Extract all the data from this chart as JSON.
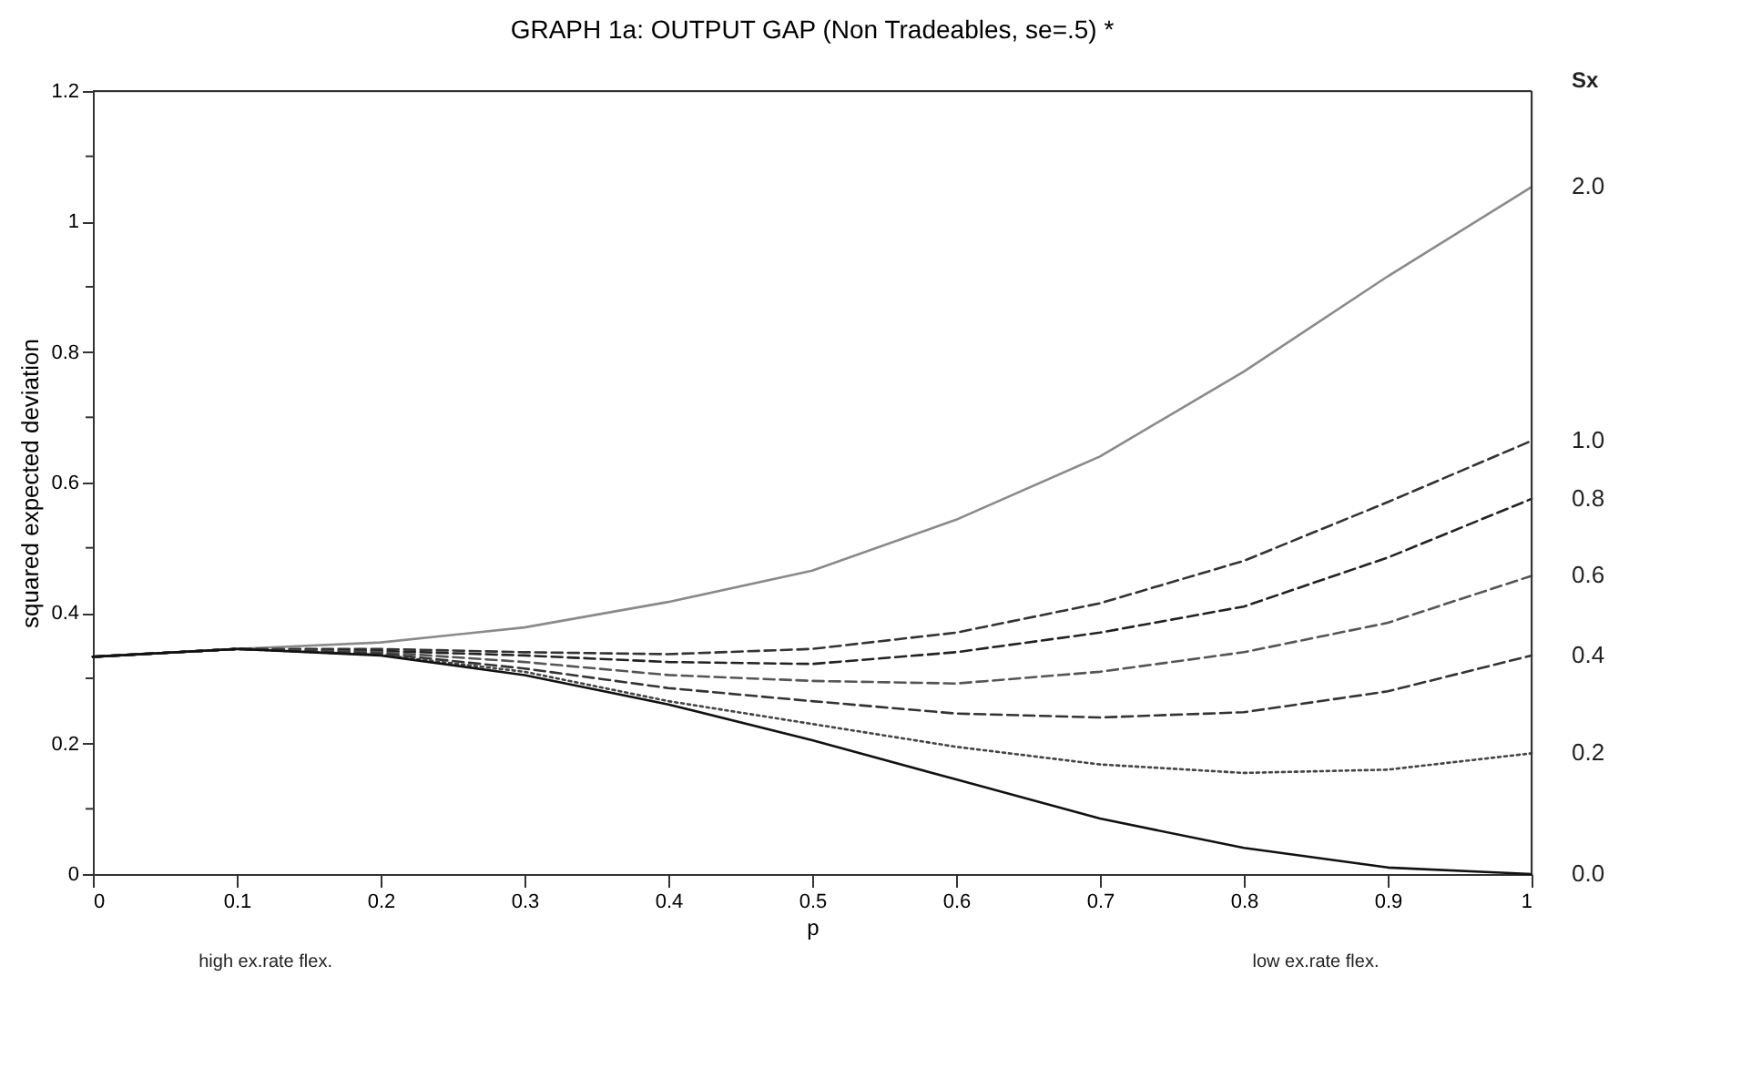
{
  "chart_data": {
    "type": "line",
    "title": "GRAPH 1a: OUTPUT GAP (Non Tradeables, se=.5) *",
    "xlabel": "p",
    "ylabel": "squared expected deviation",
    "legend_title": "Sx",
    "x": [
      0,
      0.1,
      0.2,
      0.3,
      0.4,
      0.5,
      0.6,
      0.7,
      0.8,
      0.9,
      1
    ],
    "series": [
      {
        "name": "2.0",
        "color": "#8a8a8a",
        "line_style": "solid",
        "values": [
          0.333,
          0.345,
          0.355,
          0.378,
          0.417,
          0.465,
          0.543,
          0.64,
          0.77,
          0.916,
          1.053
        ]
      },
      {
        "name": "1.0",
        "color": "#333333",
        "line_style": "dashed",
        "values": [
          0.333,
          0.345,
          0.345,
          0.34,
          0.337,
          0.345,
          0.37,
          0.415,
          0.48,
          0.57,
          0.664
        ]
      },
      {
        "name": "0.8",
        "color": "#222222",
        "line_style": "dashed",
        "values": [
          0.333,
          0.345,
          0.342,
          0.335,
          0.325,
          0.322,
          0.34,
          0.37,
          0.41,
          0.485,
          0.575
        ]
      },
      {
        "name": "0.6",
        "color": "#555555",
        "line_style": "dashed",
        "values": [
          0.333,
          0.345,
          0.34,
          0.325,
          0.305,
          0.296,
          0.292,
          0.31,
          0.34,
          0.385,
          0.457
        ]
      },
      {
        "name": "0.4",
        "color": "#333333",
        "line_style": "dashed",
        "values": [
          0.333,
          0.345,
          0.338,
          0.315,
          0.285,
          0.265,
          0.246,
          0.24,
          0.248,
          0.28,
          0.335
        ]
      },
      {
        "name": "0.2",
        "color": "#444444",
        "line_style": "dotted",
        "values": [
          0.333,
          0.345,
          0.336,
          0.31,
          0.265,
          0.23,
          0.195,
          0.168,
          0.155,
          0.16,
          0.185
        ]
      },
      {
        "name": "0.0",
        "color": "#111111",
        "line_style": "solid",
        "values": [
          0.333,
          0.345,
          0.335,
          0.305,
          0.26,
          0.205,
          0.145,
          0.085,
          0.04,
          0.01,
          0.0
        ]
      }
    ],
    "xlim": [
      0,
      1
    ],
    "ylim": [
      0,
      1.2
    ],
    "xticks": [
      0,
      0.1,
      0.2,
      0.3,
      0.4,
      0.5,
      0.6,
      0.7,
      0.8,
      0.9,
      1
    ],
    "yticks": [
      0,
      {
        "value": 0.1,
        "label": null
      },
      0.2,
      {
        "value": 0.3,
        "label": null
      },
      0.4,
      {
        "value": 0.5,
        "label": null
      },
      0.6,
      {
        "value": 0.7,
        "label": null
      },
      0.8,
      {
        "value": 0.9,
        "label": null
      },
      1,
      {
        "value": 1.1,
        "label": null
      },
      1.2
    ],
    "annotations": [
      "high ex.rate flex.",
      "low ex.rate flex."
    ],
    "grid": false,
    "legend": false
  }
}
